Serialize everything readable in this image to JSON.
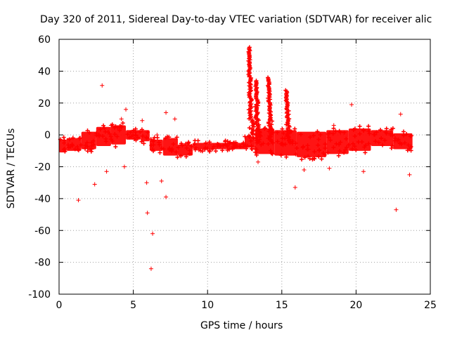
{
  "chart_data": {
    "type": "scatter",
    "title": "Day 320 of 2011, Sidereal Day-to-day VTEC variation (SDTVAR) for receiver alic",
    "xlabel": "GPS time / hours",
    "ylabel": "SDTVAR / TECUs",
    "xlim": [
      0,
      25
    ],
    "ylim": [
      -100,
      60
    ],
    "xticks": [
      0,
      5,
      10,
      15,
      20,
      25
    ],
    "yticks": [
      -100,
      -80,
      -60,
      -40,
      -20,
      0,
      20,
      40,
      60
    ],
    "grid": true,
    "marker": "+",
    "series_color": "#ff0000",
    "dense_bands": [
      {
        "x": [
          0.0,
          0.5
        ],
        "y": [
          -11,
          -3
        ]
      },
      {
        "x": [
          0.5,
          1.5
        ],
        "y": [
          -10,
          -2
        ]
      },
      {
        "x": [
          1.5,
          2.5
        ],
        "y": [
          -9,
          2
        ]
      },
      {
        "x": [
          2.5,
          3.5
        ],
        "y": [
          -7,
          5
        ]
      },
      {
        "x": [
          3.5,
          4.5
        ],
        "y": [
          -6,
          6
        ]
      },
      {
        "x": [
          4.5,
          5.5
        ],
        "y": [
          -3,
          3
        ]
      },
      {
        "x": [
          5.5,
          6.1
        ],
        "y": [
          -4,
          3
        ]
      },
      {
        "x": [
          6.1,
          7.0
        ],
        "y": [
          -10,
          -3
        ]
      },
      {
        "x": [
          7.0,
          8.0
        ],
        "y": [
          -13,
          -2
        ]
      },
      {
        "x": [
          8.0,
          9.0
        ],
        "y": [
          -13,
          -6
        ]
      },
      {
        "x": [
          9.0,
          12.5
        ],
        "y": [
          -9,
          -5
        ]
      },
      {
        "x": [
          12.5,
          13.2
        ],
        "y": [
          -8,
          -1
        ]
      },
      {
        "x": [
          13.2,
          14.5
        ],
        "y": [
          -12,
          4
        ]
      },
      {
        "x": [
          14.5,
          16.0
        ],
        "y": [
          -13,
          3
        ]
      },
      {
        "x": [
          16.0,
          18.0
        ],
        "y": [
          -14,
          2
        ]
      },
      {
        "x": [
          18.0,
          19.5
        ],
        "y": [
          -12,
          3
        ]
      },
      {
        "x": [
          19.5,
          21.0
        ],
        "y": [
          -10,
          4
        ]
      },
      {
        "x": [
          21.0,
          22.5
        ],
        "y": [
          -7,
          3
        ]
      },
      {
        "x": [
          22.5,
          23.8
        ],
        "y": [
          -9,
          1
        ]
      }
    ],
    "spikes": [
      {
        "x": 12.8,
        "y_from": -2,
        "y_to": 55
      },
      {
        "x": 13.25,
        "y_from": -5,
        "y_to": 34
      },
      {
        "x": 14.1,
        "y_from": -5,
        "y_to": 36
      },
      {
        "x": 15.3,
        "y_from": -5,
        "y_to": 28
      }
    ],
    "outliers": [
      [
        1.3,
        -41
      ],
      [
        2.4,
        -31
      ],
      [
        2.9,
        31
      ],
      [
        3.2,
        -23
      ],
      [
        4.4,
        -20
      ],
      [
        4.5,
        16
      ],
      [
        5.6,
        9
      ],
      [
        5.9,
        -30
      ],
      [
        5.95,
        -49
      ],
      [
        6.3,
        -62
      ],
      [
        6.2,
        -84
      ],
      [
        6.9,
        -29
      ],
      [
        7.2,
        -39
      ],
      [
        7.2,
        14
      ],
      [
        7.8,
        10
      ],
      [
        13.4,
        -17
      ],
      [
        15.9,
        -33
      ],
      [
        16.5,
        -22
      ],
      [
        18.2,
        -21
      ],
      [
        18.5,
        6
      ],
      [
        19.7,
        19
      ],
      [
        20.5,
        -23
      ],
      [
        22.7,
        -47
      ],
      [
        23.6,
        -25
      ],
      [
        23.0,
        13
      ],
      [
        3.5,
        6
      ],
      [
        4.2,
        10
      ],
      [
        6.6,
        0
      ],
      [
        16.8,
        -9
      ],
      [
        21.3,
        -4
      ]
    ]
  }
}
